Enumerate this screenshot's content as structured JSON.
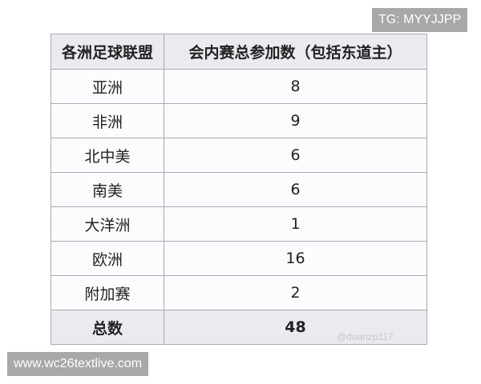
{
  "table": {
    "headers": [
      "各洲足球联盟",
      "会内赛总参加数（包括东道主）"
    ],
    "rows": [
      {
        "confederation": "亚洲",
        "count": "8"
      },
      {
        "confederation": "非洲",
        "count": "9"
      },
      {
        "confederation": "北中美",
        "count": "6"
      },
      {
        "confederation": "南美",
        "count": "6"
      },
      {
        "confederation": "大洋洲",
        "count": "1"
      },
      {
        "confederation": "欧洲",
        "count": "16"
      },
      {
        "confederation": "附加赛",
        "count": "2"
      }
    ],
    "total": {
      "label": "总数",
      "count": "48"
    }
  },
  "watermarks": {
    "tg": "TG: MYYJJPP",
    "site": "www.wc26textlive.com",
    "stamp": "@duanzp117"
  }
}
